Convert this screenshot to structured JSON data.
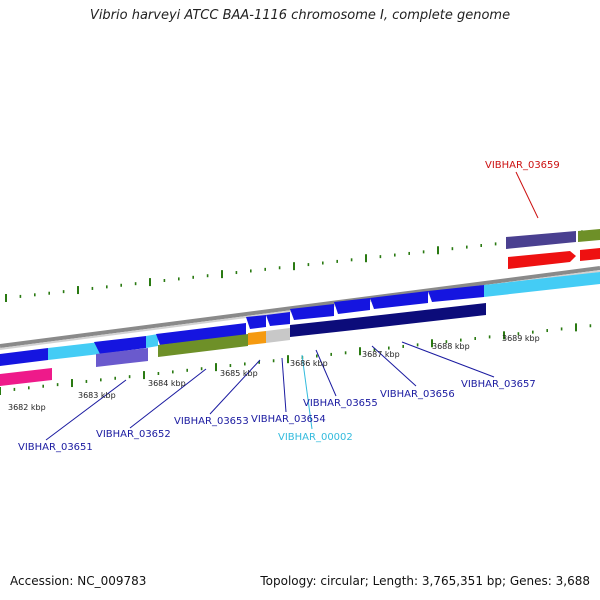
{
  "title": "Vibrio harveyi ATCC BAA-1116 chromosome I, complete genome",
  "footer": {
    "accession": "Accession: NC_009783",
    "topology": "Topology: circular; Length: 3,765,351 bp; Genes: 3,688"
  },
  "ruler_labels": [
    "3682 kbp",
    "3683 kbp",
    "3684 kbp",
    "3685 kbp",
    "3686 kbp",
    "3687 kbp",
    "3688 kbp",
    "3689 kbp"
  ],
  "gene_labels": {
    "g03651": "VIBHAR_03651",
    "g03652": "VIBHAR_03652",
    "g03653": "VIBHAR_03653",
    "g03654": "VIBHAR_03654",
    "g00002": "VIBHAR_00002",
    "g03655": "VIBHAR_03655",
    "g03656": "VIBHAR_03656",
    "g03657": "VIBHAR_03657",
    "g03659": "VIBHAR_03659"
  },
  "colors": {
    "blue_label": "#1a1aa0",
    "cyan_label": "#33bbdd",
    "red_label": "#cc1111",
    "tick_green": "#2a7a12",
    "backbone": "#888888",
    "blue": "#1515e0",
    "light_blue": "#44ccf5",
    "navy": "#0c0c7a",
    "olive": "#6e9028",
    "orange": "#f59a10",
    "light_gray": "#c8c8c8",
    "purple": "#6a5acd",
    "dark_purple": "#4a4090",
    "red": "#ee1111",
    "magenta": "#ee1a8a"
  }
}
